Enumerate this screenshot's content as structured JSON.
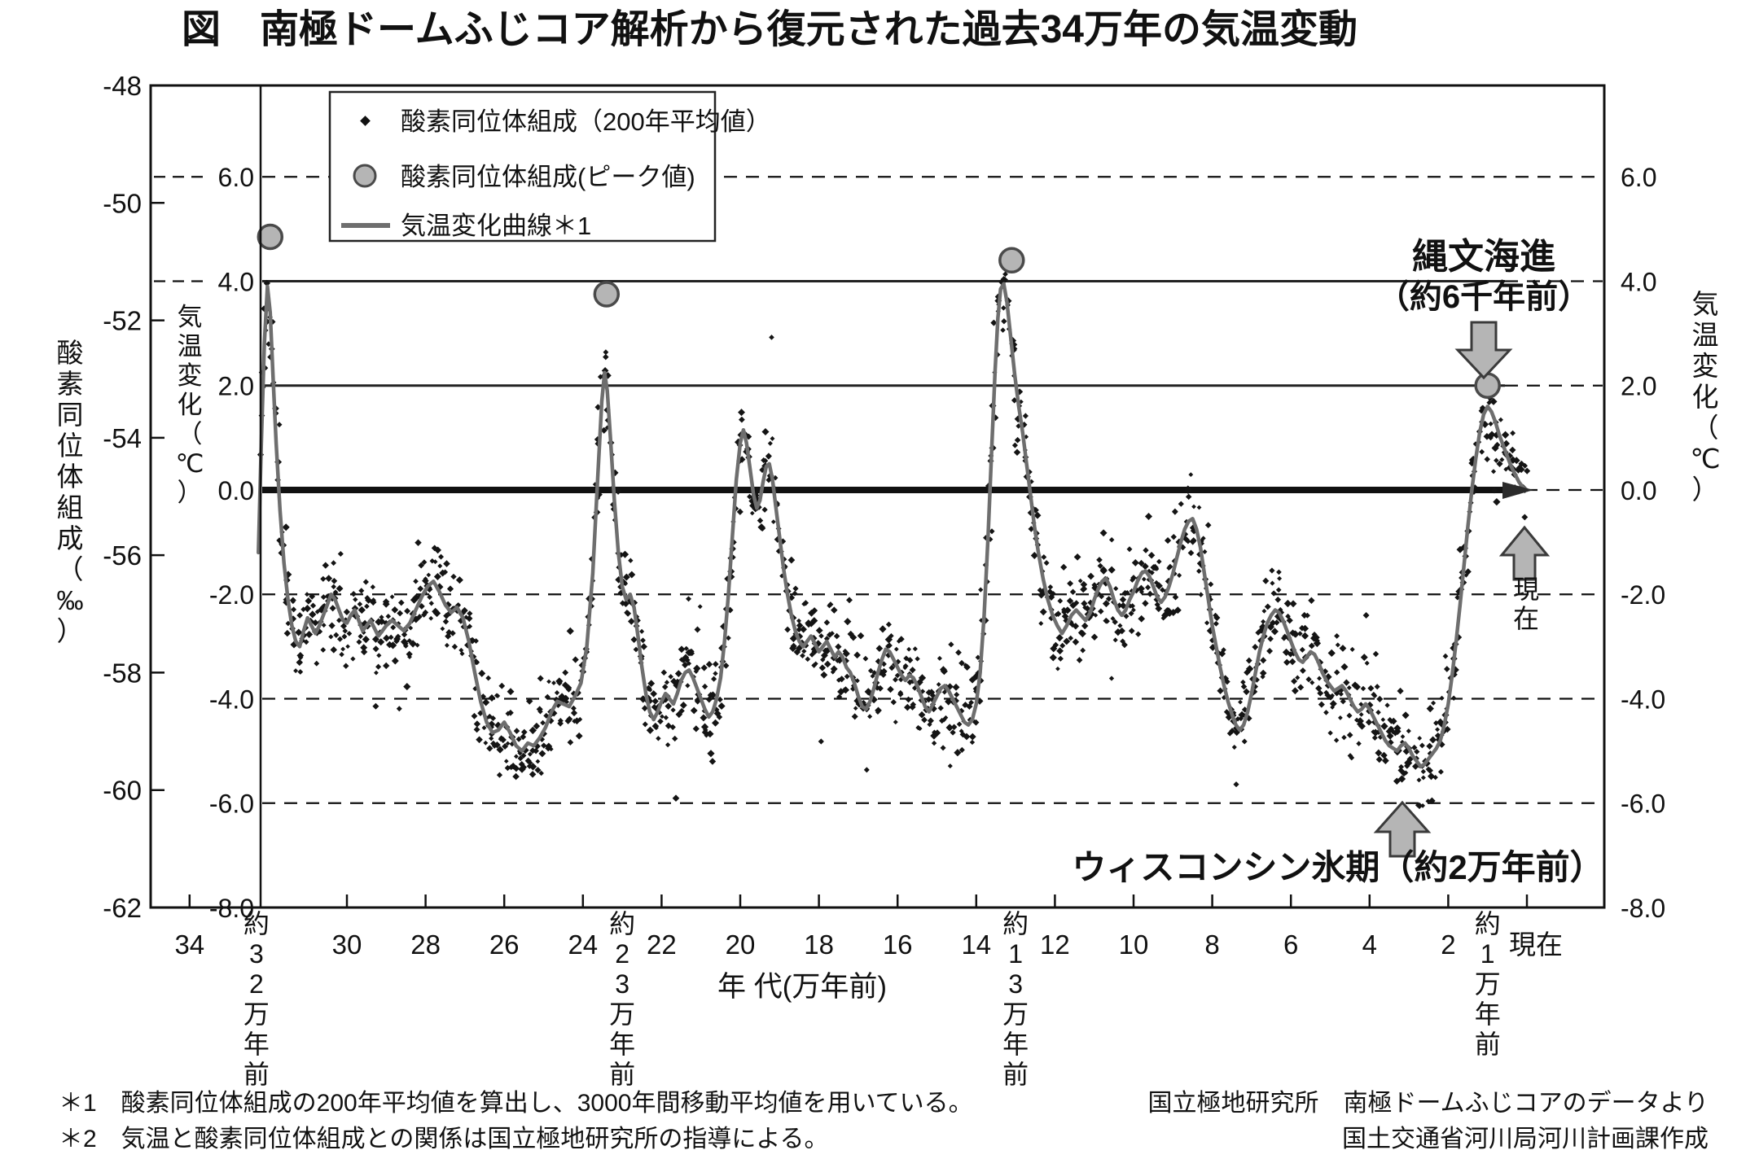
{
  "title": "図　南極ドームふじコア解析から復元された過去34万年の気温変動",
  "colors": {
    "curve_gray": "#6e6e6e",
    "peak_fill": "#b5b5b5",
    "peak_stroke": "#4a4a4a",
    "arrow_fill": "#b5b5b5",
    "arrow_stroke": "#3a3a3a",
    "ink": "#111111"
  },
  "legend": {
    "items": [
      {
        "marker": "dot-icon",
        "label": "酸素同位体組成（200年平均値）"
      },
      {
        "marker": "circle-icon",
        "label": "酸素同位体組成(ピーク値)"
      },
      {
        "marker": "line-icon",
        "label": "気温変化曲線＊1"
      }
    ]
  },
  "axes": {
    "left": {
      "title": "酸素同位体組成（‰）",
      "ticks": [
        "-48",
        "-50",
        "-52",
        "-54",
        "-56",
        "-58",
        "-60",
        "-62"
      ]
    },
    "inner_left": {
      "title": "気温変化（℃）",
      "ticks": [
        "6.0",
        "4.0",
        "2.0",
        "0.0",
        "-2.0",
        "-4.0",
        "-6.0",
        "-8.0"
      ]
    },
    "right": {
      "title": "気温変化（℃）",
      "ticks": [
        "6.0",
        "4.0",
        "2.0",
        "0.0",
        "-2.0",
        "-4.0",
        "-6.0",
        "-8.0"
      ]
    },
    "x": {
      "title": "年 代(万年前)",
      "ticks": [
        34,
        30,
        28,
        26,
        24,
        22,
        20,
        18,
        16,
        14,
        12,
        10,
        8,
        6,
        4,
        2
      ],
      "present_label": "現在",
      "special_labels": [
        {
          "v": 32.3,
          "label": "約32万年前"
        },
        {
          "v": 23.0,
          "label": "約23万年前"
        },
        {
          "v": 13.0,
          "label": "約13万年前"
        },
        {
          "v": 1.0,
          "label": "約1万年前"
        }
      ]
    }
  },
  "annotations": {
    "jomon_line1": "縄文海進",
    "jomon_line2": "（約6千年前）",
    "wisconsin": "ウィスコンシン氷期（約2万年前）",
    "present": "現在"
  },
  "footnotes": [
    "＊1　酸素同位体組成の200年平均値を算出し、3000年間移動平均値を用いている。",
    "＊2　気温と酸素同位体組成との関係は国立極地研究所の指導による。"
  ],
  "credits": [
    "国立極地研究所　南極ドームふじコアのデータより",
    "国土交通省河川局河川計画課作成"
  ],
  "chart_data": {
    "type": "line+scatter",
    "x_unit": "万年前 (10,000 years before present)",
    "y_unit_temp": "気温変化 (℃)",
    "y_unit_isotope": "酸素同位体組成 (‰)",
    "x_range": [
      35.0,
      -2.0
    ],
    "y_range_temp": [
      -8.0,
      7.75
    ],
    "y_range_isotope": [
      -62,
      -48
    ],
    "gridlines_dashed_degC": [
      6.0,
      -2.0,
      -4.0,
      -6.0
    ],
    "gridlines_solid_degC": [
      4.0,
      2.0
    ],
    "gridline_thick_degC": 0.0,
    "peak_points": [
      [
        31.95,
        4.85
      ],
      [
        23.4,
        3.75
      ],
      [
        13.1,
        4.4
      ],
      [
        1.0,
        2.0
      ]
    ],
    "curve": [
      [
        32.25,
        -1.2
      ],
      [
        32.18,
        0.8
      ],
      [
        32.1,
        2.8
      ],
      [
        32.02,
        3.9
      ],
      [
        31.95,
        3.4
      ],
      [
        31.88,
        2.2
      ],
      [
        31.8,
        0.9
      ],
      [
        31.7,
        -0.4
      ],
      [
        31.6,
        -1.4
      ],
      [
        31.5,
        -2.1
      ],
      [
        31.4,
        -2.6
      ],
      [
        31.3,
        -2.9
      ],
      [
        31.2,
        -3.0
      ],
      [
        31.1,
        -2.7
      ],
      [
        31.0,
        -2.45
      ],
      [
        30.9,
        -2.6
      ],
      [
        30.8,
        -2.75
      ],
      [
        30.7,
        -2.6
      ],
      [
        30.6,
        -2.4
      ],
      [
        30.5,
        -2.2
      ],
      [
        30.4,
        -2.0
      ],
      [
        30.3,
        -2.1
      ],
      [
        30.2,
        -2.3
      ],
      [
        30.1,
        -2.5
      ],
      [
        30.0,
        -2.55
      ],
      [
        29.9,
        -2.4
      ],
      [
        29.8,
        -2.3
      ],
      [
        29.7,
        -2.5
      ],
      [
        29.6,
        -2.7
      ],
      [
        29.5,
        -2.6
      ],
      [
        29.4,
        -2.5
      ],
      [
        29.3,
        -2.65
      ],
      [
        29.2,
        -2.8
      ],
      [
        29.1,
        -2.7
      ],
      [
        29.0,
        -2.6
      ],
      [
        28.85,
        -2.5
      ],
      [
        28.7,
        -2.6
      ],
      [
        28.55,
        -2.7
      ],
      [
        28.4,
        -2.55
      ],
      [
        28.25,
        -2.3
      ],
      [
        28.1,
        -2.05
      ],
      [
        27.95,
        -1.85
      ],
      [
        27.8,
        -1.75
      ],
      [
        27.65,
        -1.95
      ],
      [
        27.5,
        -2.2
      ],
      [
        27.35,
        -2.35
      ],
      [
        27.2,
        -2.25
      ],
      [
        27.05,
        -2.45
      ],
      [
        26.9,
        -2.9
      ],
      [
        26.75,
        -3.5
      ],
      [
        26.6,
        -4.05
      ],
      [
        26.45,
        -4.45
      ],
      [
        26.3,
        -4.65
      ],
      [
        26.15,
        -4.6
      ],
      [
        26.0,
        -4.45
      ],
      [
        25.85,
        -4.65
      ],
      [
        25.7,
        -4.9
      ],
      [
        25.55,
        -5.0
      ],
      [
        25.4,
        -4.85
      ],
      [
        25.25,
        -4.9
      ],
      [
        25.1,
        -4.75
      ],
      [
        24.95,
        -4.55
      ],
      [
        24.8,
        -4.25
      ],
      [
        24.65,
        -4.05
      ],
      [
        24.5,
        -4.1
      ],
      [
        24.35,
        -4.15
      ],
      [
        24.2,
        -3.95
      ],
      [
        24.05,
        -3.7
      ],
      [
        23.9,
        -3.0
      ],
      [
        23.75,
        -1.6
      ],
      [
        23.62,
        0.3
      ],
      [
        23.52,
        1.7
      ],
      [
        23.45,
        2.25
      ],
      [
        23.38,
        1.9
      ],
      [
        23.3,
        1.0
      ],
      [
        23.2,
        -0.2
      ],
      [
        23.1,
        -1.2
      ],
      [
        23.0,
        -1.85
      ],
      [
        22.9,
        -2.1
      ],
      [
        22.8,
        -2.0
      ],
      [
        22.7,
        -2.25
      ],
      [
        22.6,
        -2.8
      ],
      [
        22.5,
        -3.4
      ],
      [
        22.4,
        -3.9
      ],
      [
        22.3,
        -4.25
      ],
      [
        22.2,
        -4.4
      ],
      [
        22.1,
        -4.25
      ],
      [
        22.0,
        -4.05
      ],
      [
        21.9,
        -3.9
      ],
      [
        21.8,
        -4.0
      ],
      [
        21.7,
        -4.1
      ],
      [
        21.6,
        -3.9
      ],
      [
        21.5,
        -3.65
      ],
      [
        21.4,
        -3.5
      ],
      [
        21.3,
        -3.45
      ],
      [
        21.2,
        -3.6
      ],
      [
        21.1,
        -3.8
      ],
      [
        21.0,
        -4.0
      ],
      [
        20.9,
        -4.2
      ],
      [
        20.8,
        -4.35
      ],
      [
        20.7,
        -4.25
      ],
      [
        20.6,
        -4.0
      ],
      [
        20.5,
        -3.6
      ],
      [
        20.4,
        -2.9
      ],
      [
        20.3,
        -2.0
      ],
      [
        20.2,
        -0.9
      ],
      [
        20.1,
        0.2
      ],
      [
        20.0,
        0.9
      ],
      [
        19.92,
        1.15
      ],
      [
        19.84,
        0.9
      ],
      [
        19.75,
        0.4
      ],
      [
        19.66,
        -0.1
      ],
      [
        19.58,
        -0.35
      ],
      [
        19.5,
        -0.2
      ],
      [
        19.42,
        0.15
      ],
      [
        19.34,
        0.45
      ],
      [
        19.26,
        0.5
      ],
      [
        19.18,
        0.2
      ],
      [
        19.1,
        -0.3
      ],
      [
        19.0,
        -0.9
      ],
      [
        18.9,
        -1.5
      ],
      [
        18.8,
        -2.0
      ],
      [
        18.7,
        -2.4
      ],
      [
        18.6,
        -2.7
      ],
      [
        18.5,
        -2.9
      ],
      [
        18.4,
        -3.0
      ],
      [
        18.3,
        -2.9
      ],
      [
        18.2,
        -2.8
      ],
      [
        18.1,
        -2.95
      ],
      [
        18.0,
        -3.1
      ],
      [
        17.9,
        -3.0
      ],
      [
        17.8,
        -2.9
      ],
      [
        17.7,
        -3.05
      ],
      [
        17.6,
        -3.2
      ],
      [
        17.5,
        -3.1
      ],
      [
        17.4,
        -3.2
      ],
      [
        17.3,
        -3.4
      ],
      [
        17.2,
        -3.5
      ],
      [
        17.1,
        -3.7
      ],
      [
        17.0,
        -3.95
      ],
      [
        16.9,
        -4.15
      ],
      [
        16.8,
        -4.2
      ],
      [
        16.7,
        -4.05
      ],
      [
        16.6,
        -3.8
      ],
      [
        16.5,
        -3.5
      ],
      [
        16.4,
        -3.25
      ],
      [
        16.3,
        -3.05
      ],
      [
        16.2,
        -3.1
      ],
      [
        16.1,
        -3.25
      ],
      [
        16.0,
        -3.4
      ],
      [
        15.9,
        -3.55
      ],
      [
        15.8,
        -3.65
      ],
      [
        15.7,
        -3.55
      ],
      [
        15.6,
        -3.6
      ],
      [
        15.5,
        -3.75
      ],
      [
        15.4,
        -3.95
      ],
      [
        15.3,
        -4.15
      ],
      [
        15.2,
        -4.25
      ],
      [
        15.1,
        -4.1
      ],
      [
        15.0,
        -3.95
      ],
      [
        14.9,
        -3.8
      ],
      [
        14.8,
        -3.75
      ],
      [
        14.7,
        -3.85
      ],
      [
        14.6,
        -4.0
      ],
      [
        14.5,
        -4.15
      ],
      [
        14.4,
        -4.3
      ],
      [
        14.3,
        -4.45
      ],
      [
        14.2,
        -4.5
      ],
      [
        14.1,
        -4.4
      ],
      [
        14.0,
        -4.1
      ],
      [
        13.9,
        -3.5
      ],
      [
        13.8,
        -2.4
      ],
      [
        13.7,
        -0.9
      ],
      [
        13.6,
        0.9
      ],
      [
        13.52,
        2.3
      ],
      [
        13.45,
        3.3
      ],
      [
        13.38,
        3.85
      ],
      [
        13.3,
        3.95
      ],
      [
        13.22,
        3.6
      ],
      [
        13.12,
        2.9
      ],
      [
        13.02,
        2.2
      ],
      [
        12.92,
        1.6
      ],
      [
        12.82,
        1.1
      ],
      [
        12.72,
        0.5
      ],
      [
        12.62,
        -0.1
      ],
      [
        12.52,
        -0.7
      ],
      [
        12.42,
        -1.2
      ],
      [
        12.3,
        -1.7
      ],
      [
        12.18,
        -2.1
      ],
      [
        12.06,
        -2.4
      ],
      [
        11.94,
        -2.6
      ],
      [
        11.82,
        -2.75
      ],
      [
        11.7,
        -2.6
      ],
      [
        11.58,
        -2.4
      ],
      [
        11.46,
        -2.3
      ],
      [
        11.34,
        -2.4
      ],
      [
        11.22,
        -2.5
      ],
      [
        11.1,
        -2.35
      ],
      [
        11.0,
        -2.1
      ],
      [
        10.9,
        -1.9
      ],
      [
        10.8,
        -1.75
      ],
      [
        10.7,
        -1.7
      ],
      [
        10.6,
        -1.85
      ],
      [
        10.5,
        -2.1
      ],
      [
        10.4,
        -2.3
      ],
      [
        10.3,
        -2.4
      ],
      [
        10.2,
        -2.3
      ],
      [
        10.1,
        -2.1
      ],
      [
        10.0,
        -1.95
      ],
      [
        9.9,
        -1.75
      ],
      [
        9.8,
        -1.6
      ],
      [
        9.7,
        -1.55
      ],
      [
        9.6,
        -1.65
      ],
      [
        9.5,
        -1.85
      ],
      [
        9.4,
        -2.05
      ],
      [
        9.3,
        -2.15
      ],
      [
        9.2,
        -2.05
      ],
      [
        9.1,
        -1.85
      ],
      [
        9.0,
        -1.6
      ],
      [
        8.9,
        -1.3
      ],
      [
        8.8,
        -1.0
      ],
      [
        8.7,
        -0.75
      ],
      [
        8.6,
        -0.6
      ],
      [
        8.5,
        -0.55
      ],
      [
        8.4,
        -0.75
      ],
      [
        8.3,
        -1.1
      ],
      [
        8.2,
        -1.6
      ],
      [
        8.1,
        -2.1
      ],
      [
        8.0,
        -2.6
      ],
      [
        7.9,
        -3.0
      ],
      [
        7.8,
        -3.4
      ],
      [
        7.7,
        -3.75
      ],
      [
        7.6,
        -4.05
      ],
      [
        7.5,
        -4.3
      ],
      [
        7.4,
        -4.5
      ],
      [
        7.3,
        -4.6
      ],
      [
        7.2,
        -4.5
      ],
      [
        7.1,
        -4.25
      ],
      [
        7.0,
        -3.9
      ],
      [
        6.9,
        -3.5
      ],
      [
        6.8,
        -3.1
      ],
      [
        6.7,
        -2.8
      ],
      [
        6.6,
        -2.55
      ],
      [
        6.5,
        -2.4
      ],
      [
        6.4,
        -2.3
      ],
      [
        6.3,
        -2.35
      ],
      [
        6.2,
        -2.5
      ],
      [
        6.1,
        -2.7
      ],
      [
        6.0,
        -2.9
      ],
      [
        5.9,
        -3.1
      ],
      [
        5.8,
        -3.25
      ],
      [
        5.7,
        -3.3
      ],
      [
        5.6,
        -3.2
      ],
      [
        5.5,
        -3.1
      ],
      [
        5.4,
        -3.15
      ],
      [
        5.3,
        -3.3
      ],
      [
        5.2,
        -3.5
      ],
      [
        5.1,
        -3.65
      ],
      [
        5.0,
        -3.75
      ],
      [
        4.9,
        -3.85
      ],
      [
        4.8,
        -3.8
      ],
      [
        4.7,
        -3.75
      ],
      [
        4.6,
        -3.85
      ],
      [
        4.5,
        -4.0
      ],
      [
        4.4,
        -4.15
      ],
      [
        4.3,
        -4.25
      ],
      [
        4.2,
        -4.2
      ],
      [
        4.1,
        -4.1
      ],
      [
        4.0,
        -4.2
      ],
      [
        3.9,
        -4.35
      ],
      [
        3.8,
        -4.5
      ],
      [
        3.7,
        -4.65
      ],
      [
        3.6,
        -4.8
      ],
      [
        3.5,
        -4.9
      ],
      [
        3.4,
        -4.95
      ],
      [
        3.3,
        -5.0
      ],
      [
        3.2,
        -4.9
      ],
      [
        3.1,
        -4.85
      ],
      [
        3.0,
        -4.95
      ],
      [
        2.9,
        -5.1
      ],
      [
        2.8,
        -5.2
      ],
      [
        2.7,
        -5.3
      ],
      [
        2.6,
        -5.25
      ],
      [
        2.5,
        -5.15
      ],
      [
        2.4,
        -5.05
      ],
      [
        2.3,
        -4.95
      ],
      [
        2.2,
        -4.8
      ],
      [
        2.1,
        -4.5
      ],
      [
        2.0,
        -4.1
      ],
      [
        1.9,
        -3.55
      ],
      [
        1.8,
        -2.9
      ],
      [
        1.7,
        -2.2
      ],
      [
        1.6,
        -1.45
      ],
      [
        1.5,
        -0.7
      ],
      [
        1.4,
        0.0
      ],
      [
        1.3,
        0.6
      ],
      [
        1.2,
        1.1
      ],
      [
        1.1,
        1.45
      ],
      [
        1.0,
        1.6
      ],
      [
        0.9,
        1.5
      ],
      [
        0.8,
        1.3
      ],
      [
        0.7,
        1.05
      ],
      [
        0.6,
        0.85
      ],
      [
        0.5,
        0.65
      ],
      [
        0.4,
        0.45
      ],
      [
        0.3,
        0.3
      ],
      [
        0.2,
        0.15
      ],
      [
        0.1,
        0.05
      ],
      [
        0.0,
        0.0
      ]
    ],
    "scatter": {
      "derived_from": "curve",
      "description": "200-year-mean oxygen isotope points scattered around the smoothed curve",
      "step_10ky": 0.021,
      "jitter_sd_degC": 0.42,
      "outlier_fraction": 0.06,
      "outlier_extra_sd_degC": 0.85,
      "seed": 9
    }
  }
}
